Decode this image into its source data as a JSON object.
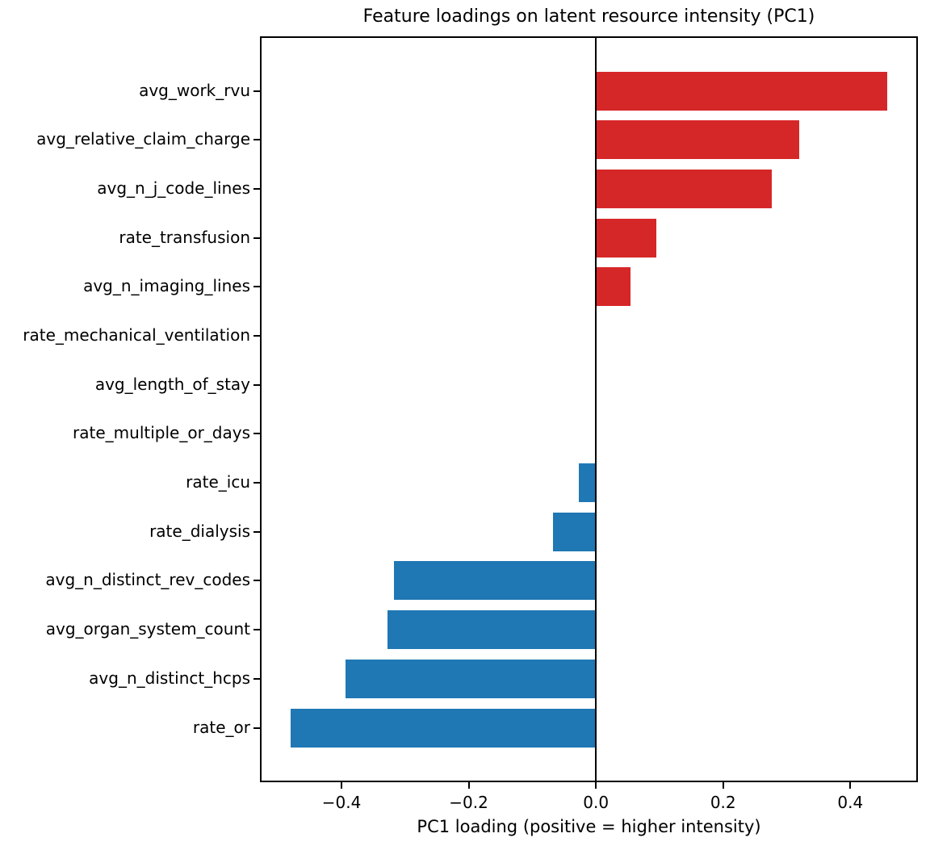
{
  "chart_data": {
    "type": "bar",
    "orientation": "horizontal",
    "title": "Feature loadings on latent resource intensity (PC1)",
    "xlabel": "PC1 loading (positive = higher intensity)",
    "ylabel": "",
    "categories": [
      "avg_work_rvu",
      "avg_relative_claim_charge",
      "avg_n_j_code_lines",
      "rate_transfusion",
      "avg_n_imaging_lines",
      "rate_mechanical_ventilation",
      "avg_length_of_stay",
      "rate_multiple_or_days",
      "rate_icu",
      "rate_dialysis",
      "avg_n_distinct_rev_codes",
      "avg_organ_system_count",
      "avg_n_distinct_hcps",
      "rate_or"
    ],
    "values": [
      0.458,
      0.32,
      0.277,
      0.095,
      0.054,
      0.0,
      0.0,
      0.0,
      -0.027,
      -0.068,
      -0.318,
      -0.328,
      -0.394,
      -0.48
    ],
    "xlim": [
      -0.527,
      0.505
    ],
    "xticks": [
      -0.4,
      -0.2,
      0.0,
      0.2,
      0.4
    ],
    "xtick_labels": [
      "−0.4",
      "−0.2",
      "0.0",
      "0.2",
      "0.4"
    ],
    "colors": {
      "positive": "#d62728",
      "negative": "#1f77b4",
      "axis": "#000000",
      "background": "#ffffff"
    },
    "grid": false,
    "zero_line": true,
    "legend_position": "none"
  }
}
